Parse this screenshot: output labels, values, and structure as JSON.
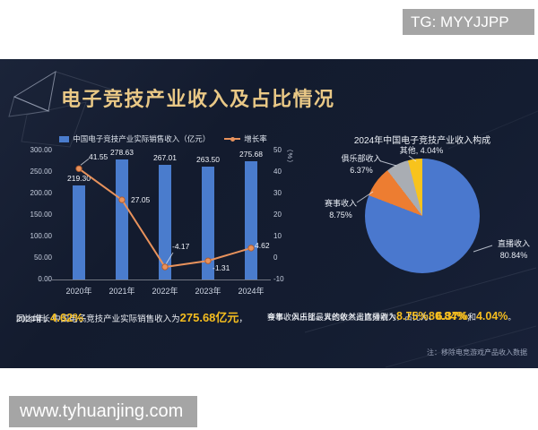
{
  "watermark_top": "TG: MYYJJPP",
  "watermark_bottom": "www.tyhuanjing.com",
  "title": "电子竞技产业收入及占比情况",
  "note": "注：移除电竞游戏产品收入数据",
  "summary_left": {
    "pre1": "2024年，中国电子竞技产业实际销售收入为",
    "hl1": "275.68亿元",
    "post1": "，",
    "pre2": "同比增长",
    "hl2": "4.62%",
    "post2": "。"
  },
  "summary_right": {
    "pre1": "今年收入占比最大的依然是直播收入，占比为",
    "hl1": "80.84%",
    "post1": "；",
    "pre2": "赛事、俱乐部、其他收入占比分别为",
    "hl2": "8.75%",
    "sep1": "、",
    "hl3": "6.37%",
    "sep2": "和",
    "hl4": "4.04%",
    "post2": "。"
  },
  "colors": {
    "background": "#ffffff",
    "panel": "#141c30",
    "title_gold": "#e9c886",
    "highlight_gold": "#f5bd1f",
    "bar_blue": "#4a7ccd",
    "line_orange": "#e8925c",
    "pie_blue": "#4a78ce",
    "pie_orange": "#ed7d31",
    "pie_gray": "#a9adb3",
    "pie_yellow": "#f8c31c",
    "watermark_gray": "#a5a5a5"
  },
  "chart_data": [
    {
      "type": "bar",
      "title": "",
      "categories": [
        "2020年",
        "2021年",
        "2022年",
        "2023年",
        "2024年"
      ],
      "series": [
        {
          "name": "中国电子竞技产业实际销售收入（亿元）",
          "type": "bar",
          "values": [
            219.3,
            278.63,
            267.01,
            263.5,
            275.68
          ],
          "color": "#4a7ccd"
        },
        {
          "name": "增长率",
          "type": "line",
          "values": [
            41.55,
            27.05,
            -4.17,
            -1.31,
            4.62
          ],
          "color": "#e8925c"
        }
      ],
      "axis_left": {
        "min": 0,
        "max": 300,
        "step": 50
      },
      "axis_right": {
        "min": -10,
        "max": 50,
        "step": 10,
        "unit": "（%）"
      },
      "legend_position": "top",
      "grid": false
    },
    {
      "type": "pie",
      "title": "2024年中国电子竞技产业收入构成",
      "slices": [
        {
          "name": "直播收入",
          "value": 80.84,
          "color": "#4a78ce"
        },
        {
          "name": "赛事收入",
          "value": 8.75,
          "color": "#ed7d31"
        },
        {
          "name": "俱乐部收入",
          "value": 6.37,
          "color": "#a9adb3"
        },
        {
          "name": "其他",
          "value": 4.04,
          "color": "#f8c31c"
        }
      ],
      "start_angle_deg": 0,
      "direction": "clockwise",
      "legend_position": "labels-with-leader-lines"
    }
  ]
}
